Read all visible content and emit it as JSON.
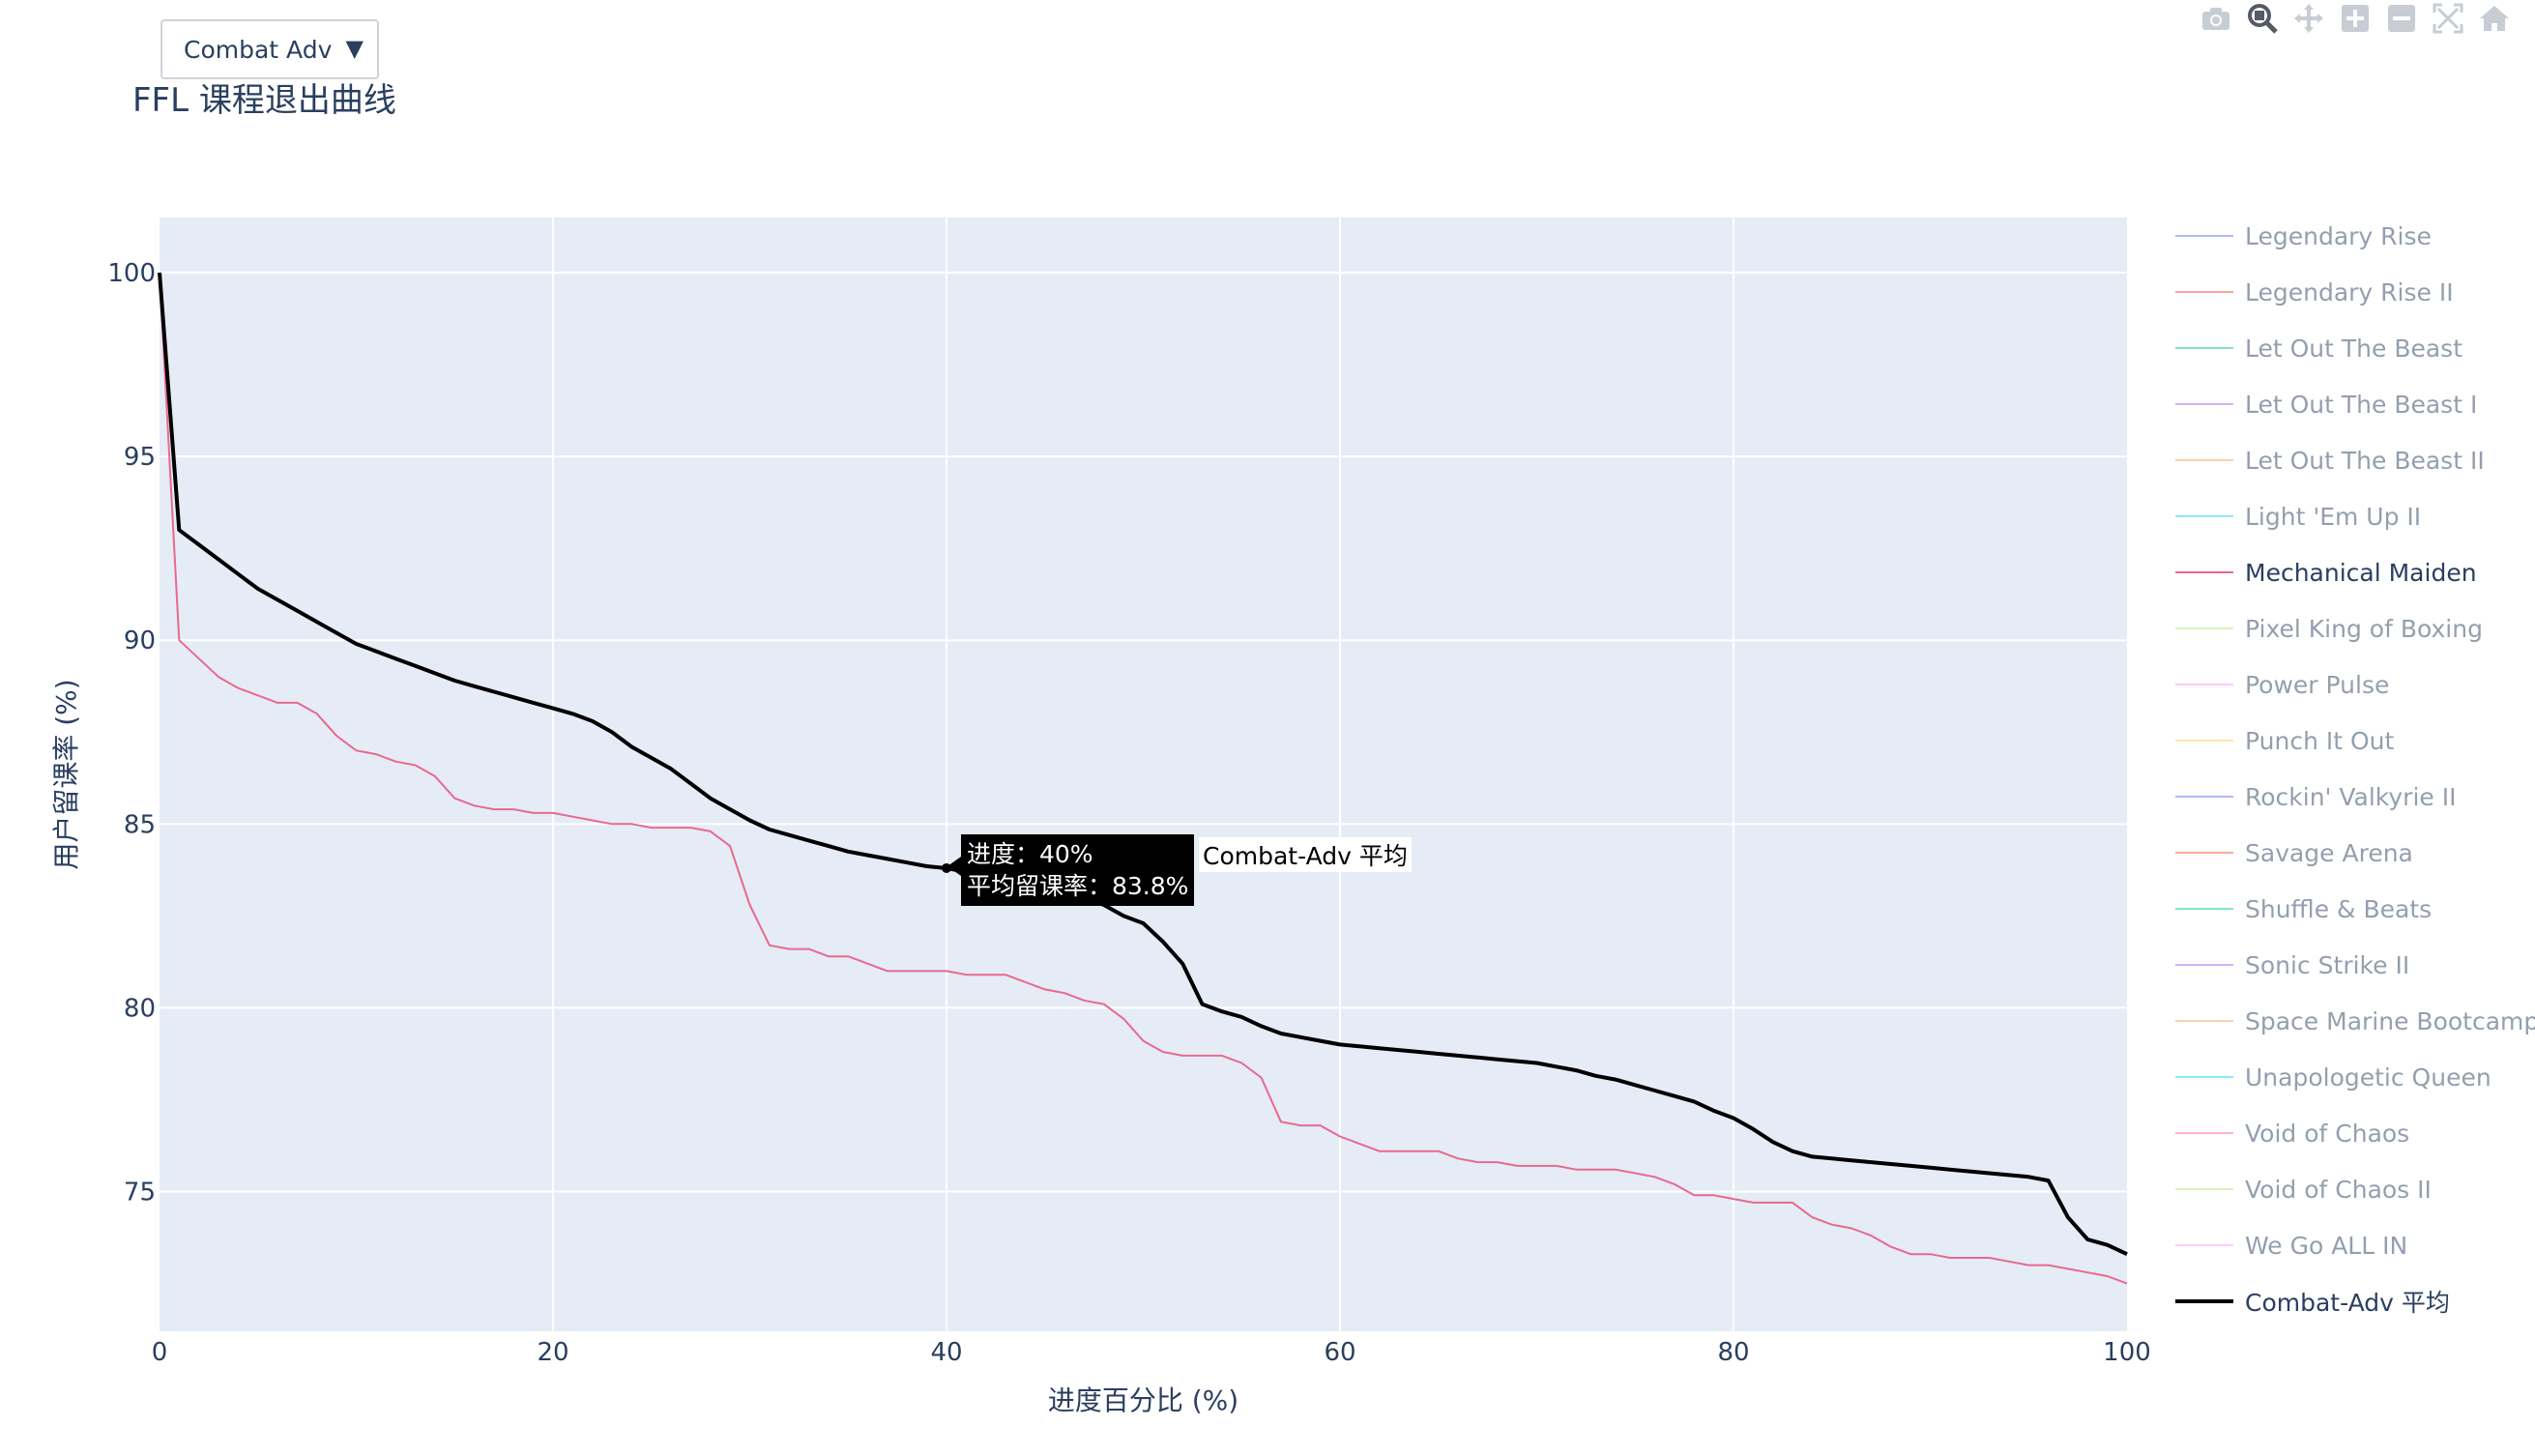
{
  "dropdown": {
    "selected": "Combat Adv"
  },
  "chart_title": "FFL 课程退出曲线",
  "modebar": [
    "camera-icon",
    "zoom-icon",
    "pan-icon",
    "zoom-in-icon",
    "zoom-out-icon",
    "autoscale-icon",
    "reset-axes-icon"
  ],
  "tooltip": {
    "line1": "进度：40%",
    "line2": "平均留课率：83.8%",
    "series": "Combat-Adv 平均"
  },
  "chart_data": {
    "type": "line",
    "title": "FFL 课程退出曲线",
    "xlabel": "进度百分比 (%)",
    "ylabel": "用户留课率 (%)",
    "xlim": [
      0,
      100
    ],
    "ylim": [
      71.2,
      101.5
    ],
    "xticks": [
      0,
      20,
      40,
      60,
      80,
      100
    ],
    "yticks": [
      75,
      80,
      85,
      90,
      95,
      100
    ],
    "grid": true,
    "legend_position": "right",
    "legend": [
      {
        "name": "Legendary Rise",
        "color": "#636efa",
        "active": false
      },
      {
        "name": "Legendary Rise II",
        "color": "#ef553b",
        "active": false
      },
      {
        "name": "Let Out The Beast",
        "color": "#00cc96",
        "active": false
      },
      {
        "name": "Let Out The Beast I",
        "color": "#ab63fa",
        "active": false
      },
      {
        "name": "Let Out The Beast II",
        "color": "#ffa15a",
        "active": false
      },
      {
        "name": "Light 'Em Up II",
        "color": "#19d3f3",
        "active": false
      },
      {
        "name": "Mechanical Maiden",
        "color": "#e8698f",
        "active": true
      },
      {
        "name": "Pixel King of Boxing",
        "color": "#b6e880",
        "active": false
      },
      {
        "name": "Power Pulse",
        "color": "#ff97ff",
        "active": false
      },
      {
        "name": "Punch It Out",
        "color": "#fecb52",
        "active": false
      },
      {
        "name": "Rockin' Valkyrie II",
        "color": "#636efa",
        "active": false
      },
      {
        "name": "Savage Arena",
        "color": "#ef553b",
        "active": false
      },
      {
        "name": "Shuffle & Beats",
        "color": "#00cc96",
        "active": false
      },
      {
        "name": "Sonic Strike II",
        "color": "#ab63fa",
        "active": false
      },
      {
        "name": "Space Marine Bootcamp",
        "color": "#ffa15a",
        "active": false
      },
      {
        "name": "Unapologetic Queen",
        "color": "#19d3f3",
        "active": false
      },
      {
        "name": "Void of Chaos",
        "color": "#ff6692",
        "active": false
      },
      {
        "name": "Void of Chaos II",
        "color": "#b6e880",
        "active": false
      },
      {
        "name": "We Go ALL IN",
        "color": "#ff97ff",
        "active": false
      },
      {
        "name": "Combat-Adv 平均",
        "color": "#000000",
        "active": true,
        "thick": true
      }
    ],
    "series": [
      {
        "name": "Mechanical Maiden",
        "color": "#e8698f",
        "x": [
          0,
          1,
          2,
          3,
          4,
          5,
          6,
          7,
          8,
          9,
          10,
          11,
          12,
          13,
          14,
          15,
          16,
          17,
          18,
          19,
          20,
          21,
          22,
          23,
          24,
          25,
          26,
          27,
          28,
          29,
          30,
          31,
          32,
          33,
          34,
          35,
          36,
          37,
          38,
          39,
          40,
          41,
          42,
          43,
          44,
          45,
          46,
          47,
          48,
          49,
          50,
          51,
          52,
          53,
          54,
          55,
          56,
          57,
          58,
          59,
          60,
          61,
          62,
          63,
          64,
          65,
          66,
          67,
          68,
          69,
          70,
          71,
          72,
          73,
          74,
          75,
          76,
          77,
          78,
          79,
          80,
          81,
          82,
          83,
          84,
          85,
          86,
          87,
          88,
          89,
          90,
          91,
          92,
          93,
          94,
          95,
          96,
          97,
          98,
          99,
          100
        ],
        "y": [
          100,
          90.0,
          89.5,
          89.0,
          88.7,
          88.5,
          88.3,
          88.3,
          88.0,
          87.4,
          87.0,
          86.9,
          86.7,
          86.6,
          86.3,
          85.7,
          85.5,
          85.4,
          85.4,
          85.3,
          85.3,
          85.2,
          85.1,
          85.0,
          85.0,
          84.9,
          84.9,
          84.9,
          84.8,
          84.4,
          82.8,
          81.7,
          81.6,
          81.6,
          81.4,
          81.4,
          81.2,
          81.0,
          81.0,
          81.0,
          81.0,
          80.9,
          80.9,
          80.9,
          80.7,
          80.5,
          80.4,
          80.2,
          80.1,
          79.7,
          79.1,
          78.8,
          78.7,
          78.7,
          78.7,
          78.5,
          78.1,
          76.9,
          76.8,
          76.8,
          76.5,
          76.3,
          76.1,
          76.1,
          76.1,
          76.1,
          75.9,
          75.8,
          75.8,
          75.7,
          75.7,
          75.7,
          75.6,
          75.6,
          75.6,
          75.5,
          75.4,
          75.2,
          74.9,
          74.9,
          74.8,
          74.7,
          74.7,
          74.7,
          74.3,
          74.1,
          74.0,
          73.8,
          73.5,
          73.3,
          73.3,
          73.2,
          73.2,
          73.2,
          73.1,
          73.0,
          73.0,
          72.9,
          72.8,
          72.7,
          72.5
        ]
      },
      {
        "name": "Combat-Adv 平均",
        "color": "#000000",
        "x": [
          0,
          1,
          2,
          3,
          4,
          5,
          6,
          7,
          8,
          9,
          10,
          11,
          12,
          13,
          14,
          15,
          16,
          17,
          18,
          19,
          20,
          21,
          22,
          23,
          24,
          25,
          26,
          27,
          28,
          29,
          30,
          31,
          32,
          33,
          34,
          35,
          36,
          37,
          38,
          39,
          40,
          41,
          42,
          43,
          44,
          45,
          46,
          47,
          48,
          49,
          50,
          51,
          52,
          53,
          54,
          55,
          56,
          57,
          58,
          59,
          60,
          61,
          62,
          63,
          64,
          65,
          66,
          67,
          68,
          69,
          70,
          71,
          72,
          73,
          74,
          75,
          76,
          77,
          78,
          79,
          80,
          81,
          82,
          83,
          84,
          85,
          86,
          87,
          88,
          89,
          90,
          91,
          92,
          93,
          94,
          95,
          96,
          97,
          98,
          99,
          100
        ],
        "y": [
          100,
          93.0,
          92.6,
          92.2,
          91.8,
          91.4,
          91.1,
          90.8,
          90.5,
          90.2,
          89.9,
          89.7,
          89.5,
          89.3,
          89.1,
          88.9,
          88.75,
          88.6,
          88.45,
          88.3,
          88.15,
          88.0,
          87.8,
          87.5,
          87.1,
          86.8,
          86.5,
          86.1,
          85.7,
          85.4,
          85.1,
          84.85,
          84.7,
          84.55,
          84.4,
          84.25,
          84.15,
          84.05,
          83.95,
          83.85,
          83.8,
          83.7,
          83.6,
          83.5,
          83.4,
          83.3,
          83.15,
          83.0,
          82.8,
          82.5,
          82.3,
          81.8,
          81.2,
          80.1,
          79.9,
          79.75,
          79.5,
          79.3,
          79.2,
          79.1,
          79.0,
          78.95,
          78.9,
          78.85,
          78.8,
          78.75,
          78.7,
          78.65,
          78.6,
          78.55,
          78.5,
          78.4,
          78.3,
          78.15,
          78.05,
          77.9,
          77.75,
          77.6,
          77.45,
          77.2,
          77.0,
          76.7,
          76.35,
          76.1,
          75.95,
          75.9,
          75.85,
          75.8,
          75.75,
          75.7,
          75.65,
          75.6,
          75.55,
          75.5,
          75.45,
          75.4,
          75.3,
          74.3,
          73.7,
          73.55,
          73.3
        ]
      }
    ]
  }
}
